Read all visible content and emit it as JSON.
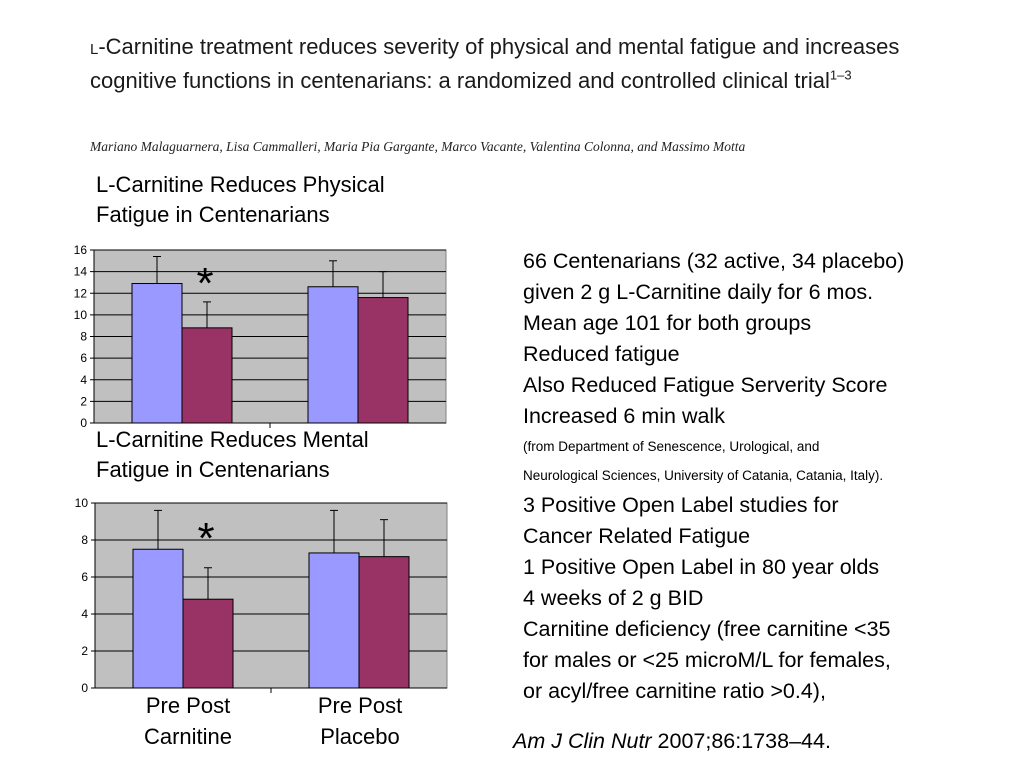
{
  "paper": {
    "title_prefix": "L",
    "title_main": "-Carnitine treatment reduces severity of physical and mental fatigue and increases cognitive functions in centenarians: a randomized and controlled clinical trial",
    "title_sup": "1–3",
    "authors": "Mariano Malaguarnera, Lisa Cammalleri, Maria Pia Gargante, Marco Vacante, Valentina Colonna, and Massimo Motta"
  },
  "physical_chart": {
    "title_line1": "L-Carnitine Reduces Physical",
    "title_line2": "Fatigue in Centenarians",
    "significance": "*"
  },
  "mental_chart": {
    "title_line1": "L-Carnitine Reduces Mental",
    "title_line2": "Fatigue in Centenarians",
    "significance": "*"
  },
  "categories": {
    "carnitine_line1": "Pre Post",
    "carnitine_line2": "Carnitine",
    "placebo_line1": "Pre Post",
    "placebo_line2": "Placebo"
  },
  "colors": {
    "pre": "#9999ff",
    "post": "#993366",
    "plot_bg": "#c0c0c0"
  },
  "summary": {
    "line1": "66 Centenarians (32 active, 34 placebo)",
    "line2": "given 2 g L-Carnitine daily for 6 mos.",
    "line3": "Mean age 101 for both groups",
    "line4": "Reduced fatigue",
    "line5": "Also Reduced Fatigue Serverity Score",
    "line6": "Increased 6 min walk",
    "source1": "(from Department of Senescence, Urological, and",
    "source2": "Neurological Sciences, University of Catania, Catania, Italy).",
    "line7": "3 Positive Open Label studies for",
    "line8": "Cancer Related Fatigue",
    "line9": "1 Positive Open Label in 80 year olds",
    "line10": "4 weeks of 2 g BID",
    "line11": "Carnitine deficiency (free carnitine <35",
    "line12": "for males or <25 microM/L for females,",
    "line13": "or acyl/free carnitine ratio >0.4),"
  },
  "citation": {
    "journal": "Am J Clin Nutr",
    "details": " 2007;86:1738–44."
  },
  "chart_data": [
    {
      "type": "bar",
      "categories": [
        "Carnitine",
        "Placebo"
      ],
      "series": [
        {
          "values": [
            12.9,
            12.6
          ],
          "errors": [
            2.5,
            2.4
          ]
        },
        {
          "values": [
            8.8,
            11.6
          ],
          "errors": [
            2.4,
            2.4
          ]
        }
      ],
      "ylim": [
        0,
        16
      ],
      "yticks": [
        0,
        2,
        4,
        6,
        8,
        10,
        12,
        14,
        16
      ],
      "grid": true
    },
    {
      "type": "bar",
      "categories": [
        "Carnitine",
        "Placebo"
      ],
      "series": [
        {
          "values": [
            7.5,
            7.3
          ],
          "errors": [
            2.1,
            2.3
          ]
        },
        {
          "values": [
            4.8,
            7.1
          ],
          "errors": [
            1.7,
            2.0
          ]
        }
      ],
      "ylim": [
        0,
        10
      ],
      "yticks": [
        0,
        2,
        4,
        6,
        8,
        10
      ],
      "grid": true
    }
  ]
}
